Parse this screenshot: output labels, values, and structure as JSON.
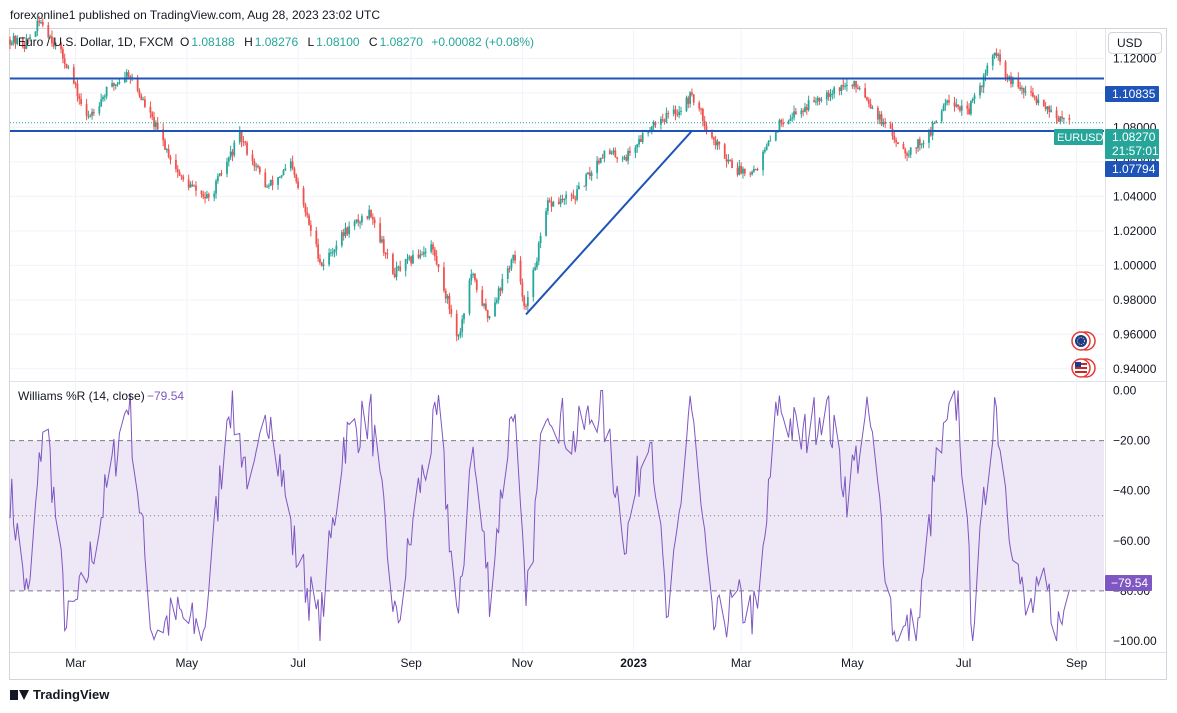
{
  "header": {
    "publisher_line": "forexonline1 published on TradingView.com, Aug 28, 2023 23:02 UTC"
  },
  "footer": {
    "brand": "TradingView"
  },
  "currency_button": "USD",
  "legend": {
    "symbol": "Euro / U.S. Dollar, 1D, FXCM",
    "o_label": "O",
    "o_value": "1.08188",
    "h_label": "H",
    "h_value": "1.08276",
    "l_label": "L",
    "l_value": "1.08100",
    "c_label": "C",
    "c_value": "1.08270",
    "change": "+0.00082 (+0.08%)"
  },
  "indicator_legend": {
    "name": "Williams %R (14, close)",
    "value": "−79.54"
  },
  "price_labels": {
    "resistance": "1.10835",
    "support": "1.07794",
    "ticker": "EURUSD",
    "last_price": "1.08270",
    "countdown": "21:57:01"
  },
  "wr_label": "−79.54",
  "colors": {
    "up": "#26a69a",
    "down": "#ef5350",
    "line": "#2962ff",
    "hline": "#1e53b8",
    "wr": "#7e57c2",
    "wr_band": "#ede7f6",
    "last": "#26a69a"
  },
  "chart_data": [
    {
      "type": "candlestick",
      "title": "Euro / U.S. Dollar, 1D, FXCM",
      "y_ticks": [
        "1.12000",
        "1.10000",
        "1.08000",
        "1.06000",
        "1.04000",
        "1.02000",
        "1.00000",
        "0.98000",
        "0.96000",
        "0.94000"
      ],
      "y_tick_values": [
        1.12,
        1.1,
        1.08,
        1.06,
        1.04,
        1.02,
        1.0,
        0.98,
        0.96,
        0.94
      ],
      "ylim": [
        0.9335,
        1.1365
      ],
      "x_ticks": [
        "Mar",
        "May",
        "Jul",
        "Sep",
        "Nov",
        "2023",
        "Mar",
        "May",
        "Jul",
        "Sep"
      ],
      "x_tick_positions": [
        "2022-03-01",
        "2022-05-01",
        "2022-07-01",
        "2022-09-01",
        "2022-11-01",
        "2023-01-01",
        "2023-03-01",
        "2023-05-01",
        "2023-07-01",
        "2023-09-01"
      ],
      "x_range": [
        "2022-01-24",
        "2023-09-16"
      ],
      "price_path": [
        [
          "2022-01-24",
          1.131
        ],
        [
          "2022-02-01",
          1.128
        ],
        [
          "2022-02-10",
          1.142
        ],
        [
          "2022-02-24",
          1.117
        ],
        [
          "2022-03-07",
          1.085
        ],
        [
          "2022-03-18",
          1.101
        ],
        [
          "2022-03-30",
          1.112
        ],
        [
          "2022-04-14",
          1.08
        ],
        [
          "2022-04-28",
          1.05
        ],
        [
          "2022-05-13",
          1.038
        ],
        [
          "2022-05-30",
          1.075
        ],
        [
          "2022-06-14",
          1.045
        ],
        [
          "2022-06-27",
          1.058
        ],
        [
          "2022-07-14",
          1.0
        ],
        [
          "2022-07-27",
          1.02
        ],
        [
          "2022-08-10",
          1.031
        ],
        [
          "2022-08-22",
          0.995
        ],
        [
          "2022-09-12",
          1.012
        ],
        [
          "2022-09-27",
          0.958
        ],
        [
          "2022-10-04",
          0.995
        ],
        [
          "2022-10-13",
          0.97
        ],
        [
          "2022-10-27",
          1.005
        ],
        [
          "2022-11-03",
          0.975
        ],
        [
          "2022-11-15",
          1.035
        ],
        [
          "2022-11-30",
          1.04
        ],
        [
          "2022-12-15",
          1.065
        ],
        [
          "2022-12-28",
          1.063
        ],
        [
          "2023-01-12",
          1.083
        ],
        [
          "2023-01-26",
          1.09
        ],
        [
          "2023-02-02",
          1.099
        ],
        [
          "2023-02-14",
          1.072
        ],
        [
          "2023-02-27",
          1.055
        ],
        [
          "2023-03-09",
          1.056
        ],
        [
          "2023-03-23",
          1.084
        ],
        [
          "2023-04-03",
          1.09
        ],
        [
          "2023-04-14",
          1.099
        ],
        [
          "2023-04-26",
          1.104
        ],
        [
          "2023-05-05",
          1.104
        ],
        [
          "2023-05-19",
          1.08
        ],
        [
          "2023-05-31",
          1.066
        ],
        [
          "2023-06-12",
          1.075
        ],
        [
          "2023-06-22",
          1.098
        ],
        [
          "2023-07-03",
          1.088
        ],
        [
          "2023-07-11",
          1.106
        ],
        [
          "2023-07-18",
          1.124
        ],
        [
          "2023-07-25",
          1.108
        ],
        [
          "2023-08-04",
          1.1
        ],
        [
          "2023-08-14",
          1.094
        ],
        [
          "2023-08-23",
          1.084
        ],
        [
          "2023-08-28",
          1.0827
        ]
      ],
      "horizontal_lines": [
        {
          "price": 1.10835,
          "label": "1.10835"
        },
        {
          "price": 1.07794,
          "label": "1.07794"
        }
      ],
      "trendline": {
        "from": [
          "2022-11-03",
          0.9715
        ],
        "to": [
          "2023-02-02",
          1.078
        ]
      },
      "last_price": 1.0827,
      "last_ticker": "EURUSD",
      "last_countdown": "21:57:01"
    },
    {
      "type": "line",
      "title": "Williams %R (14, close)",
      "y_ticks": [
        "0.00",
        "−20.00",
        "−40.00",
        "−60.00",
        "−80.00",
        "−100.00"
      ],
      "y_tick_values": [
        0,
        -20,
        -40,
        -60,
        -80,
        -100
      ],
      "ylim": [
        -104,
        3
      ],
      "band": [
        -80,
        -20
      ],
      "midline": -50,
      "last_value": -79.54,
      "path": [
        [
          "2022-01-24",
          -40
        ],
        [
          "2022-02-03",
          -85
        ],
        [
          "2022-02-12",
          -5
        ],
        [
          "2022-02-24",
          -95
        ],
        [
          "2022-03-05",
          -80
        ],
        [
          "2022-03-18",
          -40
        ],
        [
          "2022-03-30",
          -3
        ],
        [
          "2022-04-12",
          -95
        ],
        [
          "2022-04-27",
          -90
        ],
        [
          "2022-05-10",
          -98
        ],
        [
          "2022-05-24",
          -3
        ],
        [
          "2022-06-06",
          -40
        ],
        [
          "2022-06-16",
          -5
        ],
        [
          "2022-06-28",
          -60
        ],
        [
          "2022-07-13",
          -95
        ],
        [
          "2022-07-26",
          -20
        ],
        [
          "2022-08-10",
          -10
        ],
        [
          "2022-08-24",
          -95
        ],
        [
          "2022-09-05",
          -40
        ],
        [
          "2022-09-16",
          -10
        ],
        [
          "2022-09-27",
          -95
        ],
        [
          "2022-10-04",
          -20
        ],
        [
          "2022-10-14",
          -80
        ],
        [
          "2022-10-27",
          -3
        ],
        [
          "2022-11-03",
          -90
        ],
        [
          "2022-11-14",
          -2
        ],
        [
          "2022-11-29",
          -20
        ],
        [
          "2022-12-14",
          -5
        ],
        [
          "2022-12-28",
          -60
        ],
        [
          "2023-01-10",
          -10
        ],
        [
          "2023-01-20",
          -98
        ],
        [
          "2023-02-01",
          -2
        ],
        [
          "2023-02-13",
          -95
        ],
        [
          "2023-02-27",
          -85
        ],
        [
          "2023-03-10",
          -90
        ],
        [
          "2023-03-21",
          -5
        ],
        [
          "2023-04-03",
          -20
        ],
        [
          "2023-04-16",
          -5
        ],
        [
          "2023-04-28",
          -40
        ],
        [
          "2023-05-10",
          -10
        ],
        [
          "2023-05-24",
          -98
        ],
        [
          "2023-06-06",
          -95
        ],
        [
          "2023-06-16",
          -30
        ],
        [
          "2023-06-28",
          -3
        ],
        [
          "2023-07-06",
          -95
        ],
        [
          "2023-07-18",
          -2
        ],
        [
          "2023-07-26",
          -50
        ],
        [
          "2023-08-04",
          -90
        ],
        [
          "2023-08-15",
          -80
        ],
        [
          "2023-08-23",
          -95
        ],
        [
          "2023-08-28",
          -79.54
        ]
      ]
    }
  ]
}
